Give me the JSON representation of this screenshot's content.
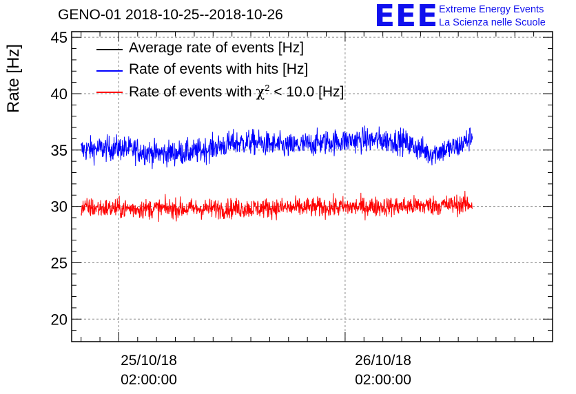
{
  "header": {
    "title": "GENO-01 2018-10-25--2018-10-26",
    "logo_text": "EEE",
    "logo_line1": "Extreme Energy Events",
    "logo_line2": "La Scienza nelle Scuole"
  },
  "colors": {
    "average": "#000000",
    "hits": "#0000ff",
    "chi2": "#ff0000",
    "logo": "#1010ee",
    "grid": "#888888"
  },
  "chart_data": {
    "type": "line",
    "title": "GENO-01 2018-10-25--2018-10-26",
    "xlabel": "",
    "ylabel": "Rate [Hz]",
    "ylim": [
      18,
      45.5
    ],
    "yticks": [
      20,
      25,
      30,
      35,
      40,
      45
    ],
    "xlim_hours": [
      -5,
      46
    ],
    "xticks": [
      {
        "line1": "25/10/18",
        "line2": "02:00:00",
        "hour": 0
      },
      {
        "line1": "26/10/18",
        "line2": "02:00:00",
        "hour": 24
      }
    ],
    "grid": true,
    "legend_position": "top-left",
    "series": [
      {
        "name": "Average rate of events [Hz]",
        "color": "#000000",
        "x": [],
        "values": []
      },
      {
        "name": "Rate of events with hits [Hz]",
        "color": "#0000ff",
        "x_start": -4,
        "x_end": 37.5,
        "trend_x": [
          -4,
          0,
          4,
          8,
          12,
          14,
          18,
          22,
          26,
          30,
          33,
          36,
          37.5
        ],
        "trend_y": [
          35.0,
          35.2,
          34.7,
          34.8,
          35.6,
          35.7,
          35.3,
          35.7,
          35.9,
          35.8,
          34.7,
          35.3,
          36.2
        ],
        "noise_amplitude": 1.0
      },
      {
        "name": "Rate of events with χ² < 10.0 [Hz]",
        "color": "#ff0000",
        "x_start": -4,
        "x_end": 37.5,
        "trend_x": [
          -4,
          0,
          10,
          20,
          30,
          37.5
        ],
        "trend_y": [
          29.9,
          29.8,
          29.8,
          29.9,
          30.0,
          30.2
        ],
        "noise_amplitude": 0.8
      }
    ]
  },
  "legend": {
    "items": [
      {
        "label": "Average rate of events [Hz]"
      },
      {
        "label": "Rate of events with hits [Hz]"
      },
      {
        "label_prefix": "Rate of events with ",
        "label_chi": "χ",
        "label_sup": "2",
        "label_suffix": " < 10.0 [Hz]"
      }
    ]
  }
}
